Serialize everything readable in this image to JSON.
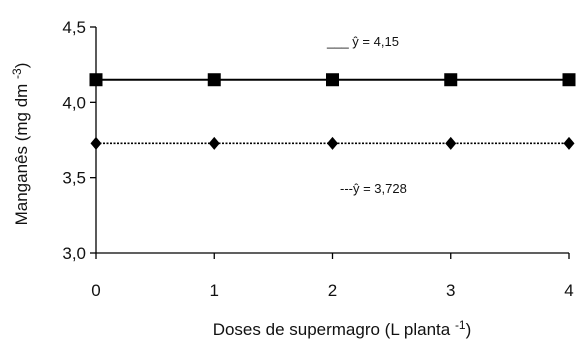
{
  "chart_data": {
    "type": "scatter",
    "title": "",
    "xlabel": "Doses de supermagro (L planta ",
    "xlabel_sup": "-1",
    "xlabel_tail": ")",
    "ylabel": "Manganês (mg dm ",
    "ylabel_sup": "-3",
    "ylabel_tail": ")",
    "x": [
      0,
      1,
      2,
      3,
      4
    ],
    "xlim": [
      0,
      4
    ],
    "ylim": [
      3.0,
      4.5
    ],
    "x_ticks": [
      "0",
      "1",
      "2",
      "3",
      "4"
    ],
    "y_ticks": [
      "3,0",
      "3,5",
      "4,0",
      "4,5"
    ],
    "y_tick_values": [
      3.0,
      3.5,
      4.0,
      4.5
    ],
    "grid": false,
    "series": [
      {
        "marker": "square",
        "line_style": "solid",
        "values": [
          4.15,
          4.15,
          4.15,
          4.15,
          4.15
        ],
        "fit_value": 4.15,
        "annotation": "___ ŷ = 4,15"
      },
      {
        "marker": "diamond",
        "line_style": "dashed",
        "values": [
          3.728,
          3.728,
          3.728,
          3.728,
          3.728
        ],
        "fit_value": 3.728,
        "annotation": "---ŷ = 3,728"
      }
    ]
  }
}
